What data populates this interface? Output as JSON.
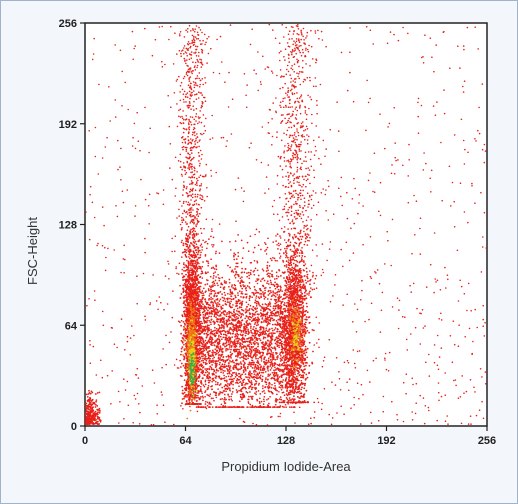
{
  "chart_data": {
    "type": "scatter",
    "title": "",
    "xlabel": "Propidium Iodide-Area",
    "ylabel": "FSC-Height",
    "xlim": [
      0,
      256
    ],
    "ylim": [
      0,
      256
    ],
    "x_ticks": [
      0,
      64,
      128,
      192,
      256
    ],
    "y_ticks": [
      0,
      64,
      128,
      192,
      256
    ],
    "x_tick_labels": [
      "0",
      "64",
      "128",
      "192",
      "256"
    ],
    "y_tick_labels": [
      "0",
      "64",
      "128",
      "192",
      "256"
    ],
    "grid": false,
    "legend": "none",
    "point_color": "#e8201a",
    "density_colors": [
      "#e8201a",
      "#f07a1a",
      "#e6d21e",
      "#2fae4a"
    ],
    "populations": [
      {
        "label": "G1 peak",
        "x_center": 68,
        "y_center": 60,
        "x_spread": 2.5,
        "y_spread": 35,
        "weight": "very high"
      },
      {
        "label": "G2/M peak",
        "x_center": 134,
        "y_center": 60,
        "x_spread": 3.5,
        "y_spread": 35,
        "weight": "high"
      },
      {
        "label": "S phase",
        "x_range": [
          70,
          132
        ],
        "y_center": 55,
        "y_spread": 30,
        "weight": "high"
      },
      {
        "label": "debris",
        "x_range": [
          0,
          10
        ],
        "y_range": [
          0,
          25
        ],
        "weight": "medium"
      }
    ]
  }
}
